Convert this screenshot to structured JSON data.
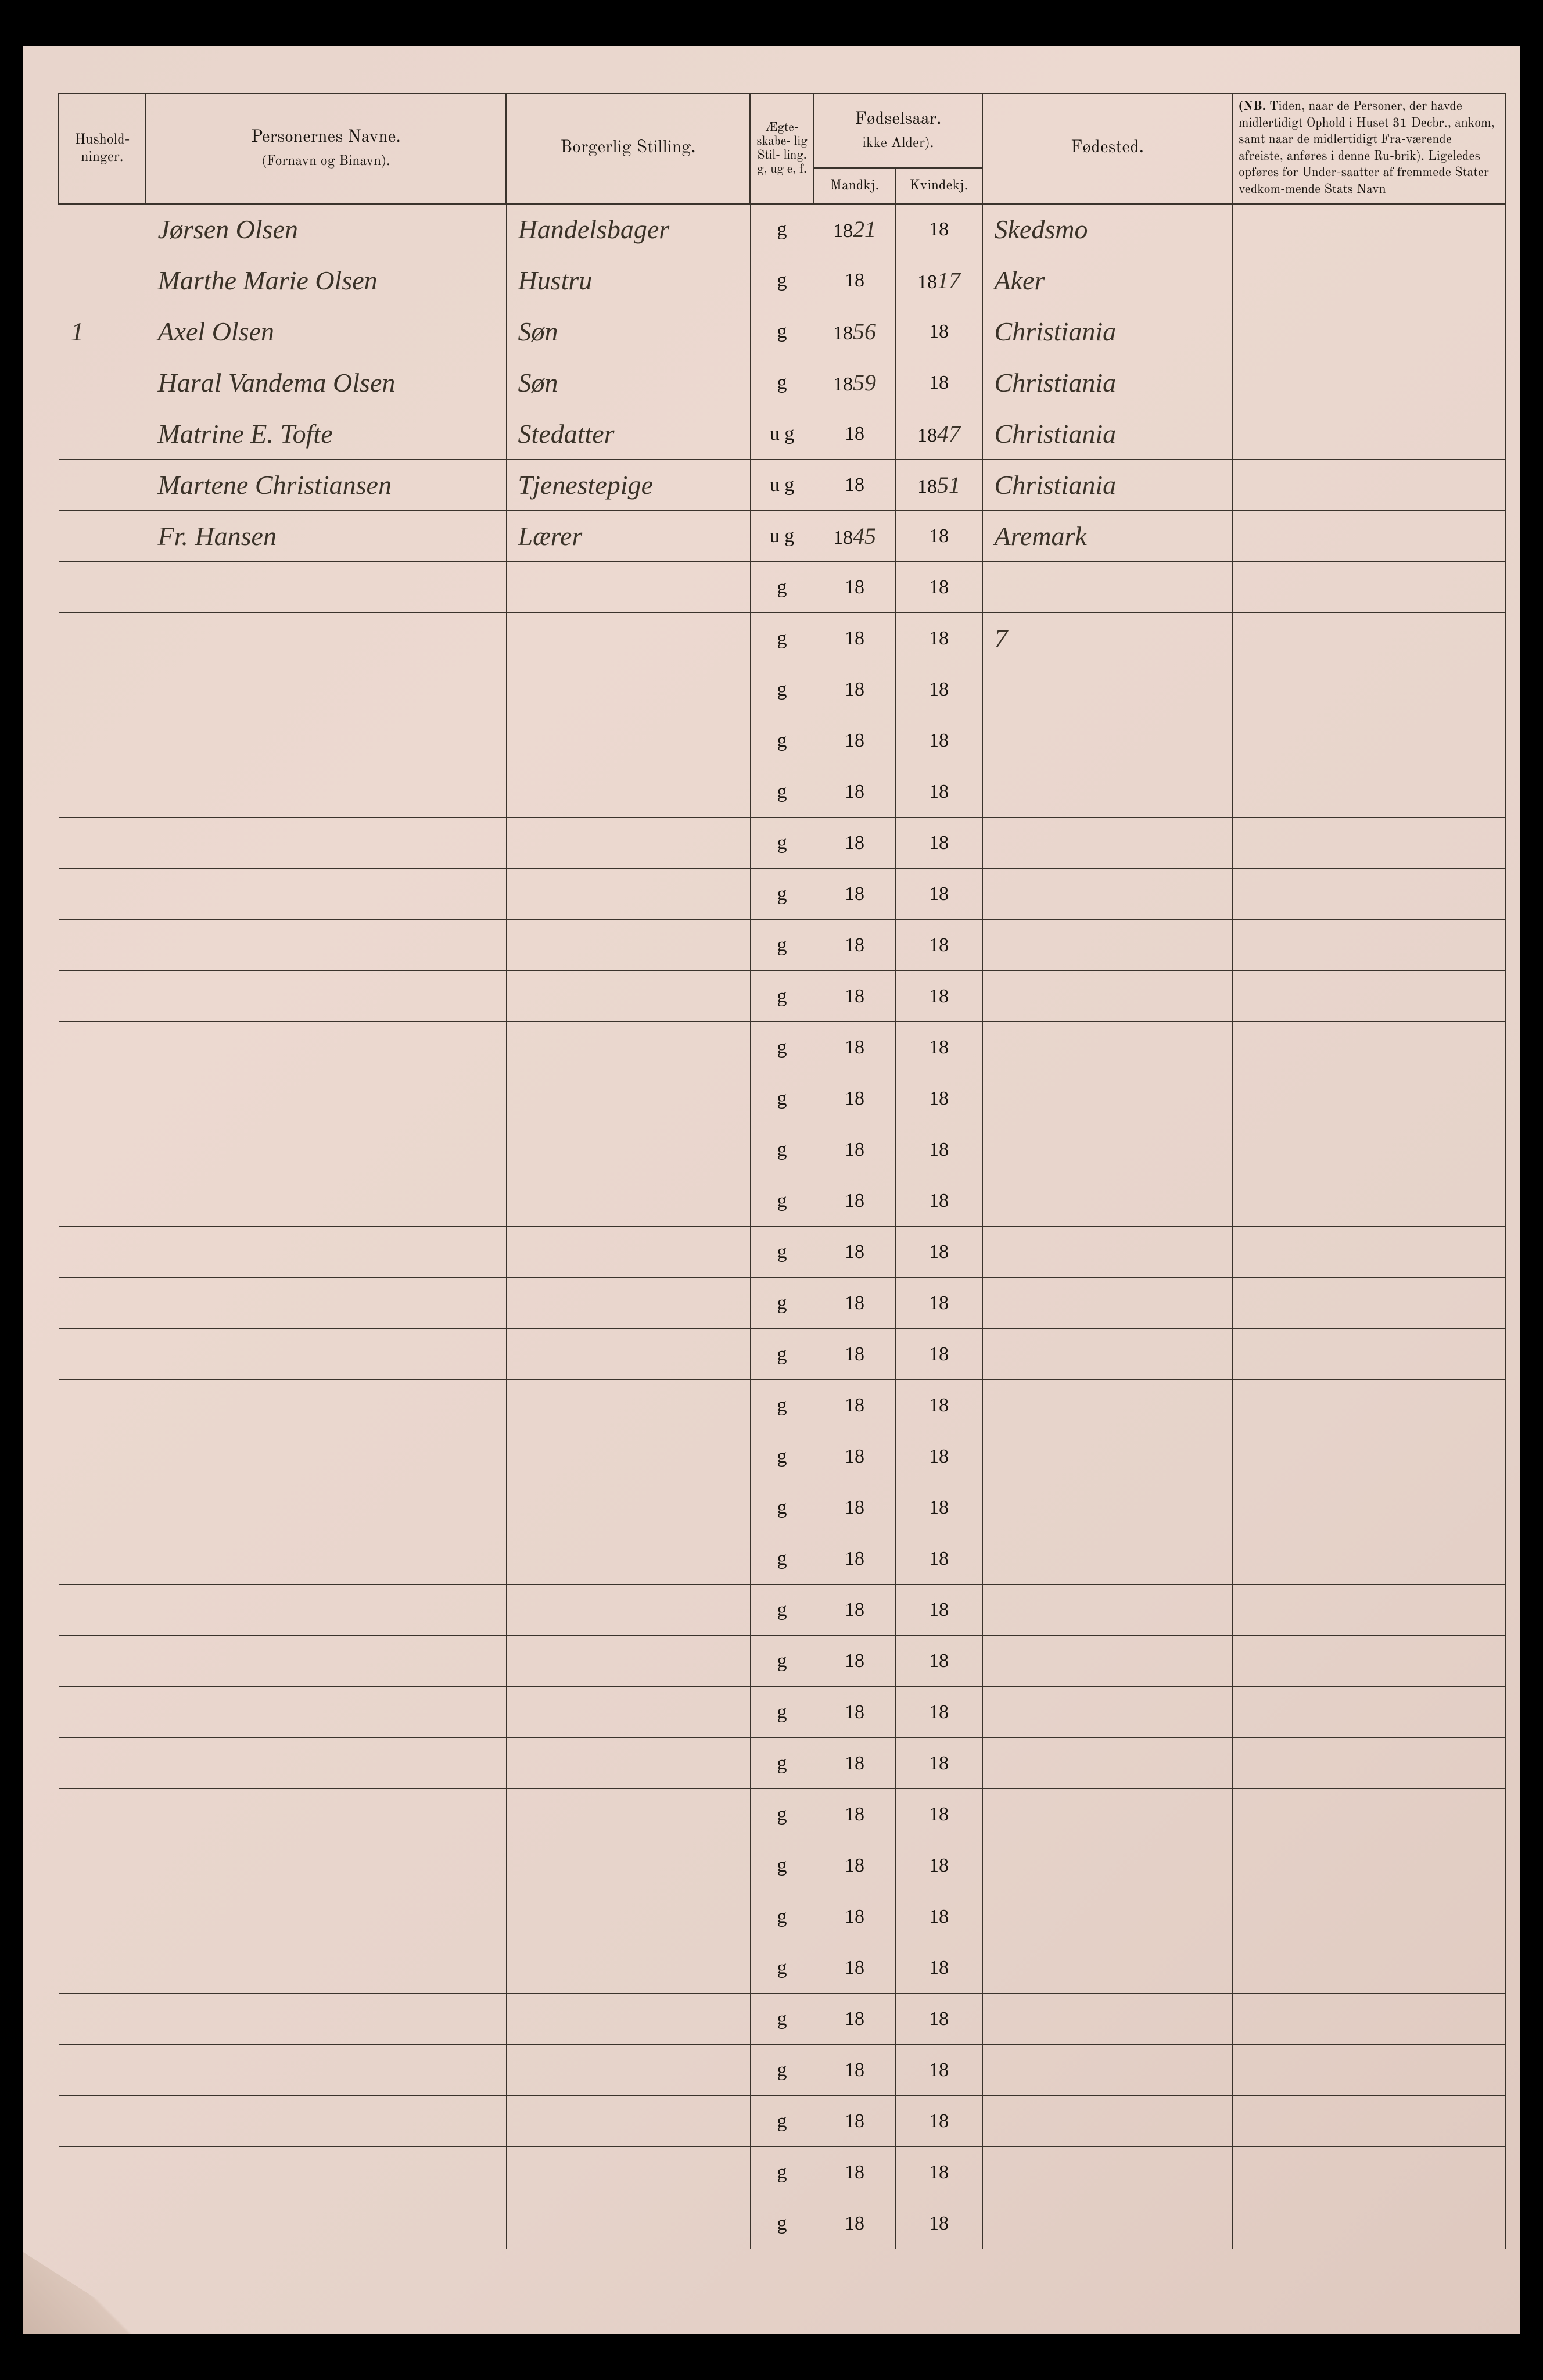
{
  "headers": {
    "hushold": "Hushold-\nninger.",
    "navne_main": "Personernes Navne.",
    "navne_sub": "(Fornavn og Binavn).",
    "stilling": "Borgerlig Stilling.",
    "aegteskab": "Ægte-\nskabe-\nlig\nStil-\nling.\ng, ug\ne, f.",
    "fodselsaar": "Fødselsaar.",
    "fodselsaar_sub": "ikke Alder).",
    "mandkj": "Mandkj.",
    "kvindekj": "Kvindekj.",
    "fodested": "Fødested.",
    "nb": "(NB.  Tiden, naar de Personer, der havde midlertidigt Ophold i Huset 31 Decbr., ankom, samt naar de midlertidigt Fra-værende afreiste, anføres i denne Ru-brik).  Ligeledes opføres for Under-saatter af fremmede Stater vedkom-mende Stats Navn"
  },
  "preprinted": {
    "g": "g",
    "eighteen": "18"
  },
  "rows": [
    {
      "hushold": "",
      "navn": "Jørsen Olsen",
      "stilling": "Handelsbager",
      "aeg": "g",
      "mand": "21",
      "kvind": "",
      "fodested": "Skedsmo"
    },
    {
      "hushold": "",
      "navn": "Marthe Marie Olsen",
      "stilling": "Hustru",
      "aeg": "g",
      "mand": "",
      "kvind": "17",
      "fodested": "Aker"
    },
    {
      "hushold": "1",
      "navn": "Axel Olsen",
      "stilling": "Søn",
      "aeg": "g",
      "mand": "56",
      "kvind": "",
      "fodested": "Christiania"
    },
    {
      "hushold": "",
      "navn": "Haral Vandema Olsen",
      "stilling": "Søn",
      "aeg": "g",
      "mand": "59",
      "kvind": "",
      "fodested": "Christiania"
    },
    {
      "hushold": "",
      "navn": "Matrine E. Tofte",
      "stilling": "Stedatter",
      "aeg": "u g",
      "mand": "",
      "kvind": "47",
      "fodested": "Christiania"
    },
    {
      "hushold": "",
      "navn": "Martene Christiansen",
      "stilling": "Tjenestepige",
      "aeg": "u g",
      "mand": "",
      "kvind": "51",
      "fodested": "Christiania"
    },
    {
      "hushold": "",
      "navn": "Fr. Hansen",
      "stilling": "Lærer",
      "aeg": "u g",
      "mand": "45",
      "kvind": "",
      "fodested": "Aremark"
    }
  ],
  "stray_mark": "7",
  "empty_row_count": 33,
  "colors": {
    "paper": "#e8d5cc",
    "ink_print": "#1a1510",
    "ink_hand": "#3a3228",
    "border": "#3a332c"
  }
}
